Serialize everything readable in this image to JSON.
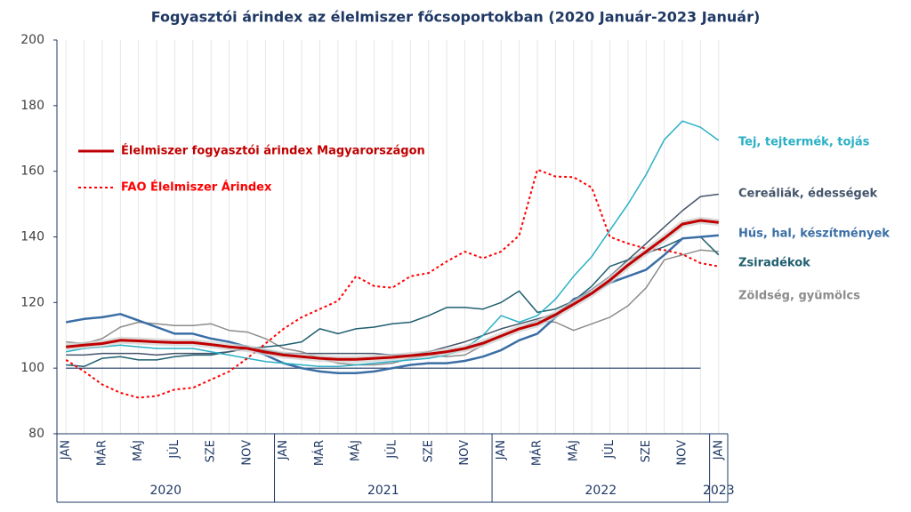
{
  "chart_data": {
    "type": "line",
    "title": "Fogyasztói árindex az élelmiszer főcsoportokban (2020 Január-2023 Január)",
    "categories": [
      "JAN",
      null,
      "MÁR",
      null,
      "MÁJ",
      null,
      "JÚL",
      null,
      "SZE",
      null,
      "NOV",
      null,
      "JAN",
      null,
      "MÁR",
      null,
      "MÁJ",
      null,
      "JÚL",
      null,
      "SZE",
      null,
      "NOV",
      null,
      "JAN",
      null,
      "MÁR",
      null,
      "MÁJ",
      null,
      "JÚL",
      null,
      "SZE",
      null,
      "NOV",
      null,
      "JAN"
    ],
    "years": [
      "2020",
      "2021",
      "2022",
      "2023"
    ],
    "ylim": [
      80,
      200
    ],
    "yticks": [
      80,
      100,
      120,
      140,
      160,
      180,
      200
    ],
    "baseline": 100,
    "legend": "upper left",
    "series": [
      {
        "name": "Élelmiszer fogyasztói árindex Magyarországon",
        "color": "#c00000",
        "width": 3,
        "legend": true,
        "values": [
          106.5,
          107,
          107.5,
          108.5,
          108.3,
          108,
          107.8,
          107.8,
          107.2,
          106.5,
          106,
          104.9,
          104,
          103.5,
          103,
          102.7,
          102.7,
          103,
          103.3,
          103.8,
          104.3,
          105,
          106,
          107.6,
          109.8,
          112,
          113.5,
          116.3,
          119.5,
          122.8,
          126.8,
          131.4,
          135.5,
          139.6,
          143.9,
          145,
          144.4
        ]
      },
      {
        "name": "FAO Élelmiszer Árindex",
        "color": "#ff0000",
        "width": 2,
        "dash": "dotted",
        "legend": true,
        "values": [
          102.5,
          99,
          95,
          92.5,
          91,
          91.5,
          93.5,
          94,
          96.5,
          99,
          103,
          107.5,
          112,
          115.5,
          118,
          120.5,
          128,
          125,
          124.5,
          128,
          129,
          132.5,
          135.5,
          133.5,
          135.5,
          140.5,
          160.5,
          158.4,
          158.2,
          155,
          140,
          138,
          136.4,
          136,
          134.7,
          132,
          131
        ]
      },
      {
        "name": "Tej, tejtermék, tojás",
        "color": "#2ab0c5",
        "width": 1.5,
        "values": [
          105,
          106,
          106.5,
          107,
          106.5,
          106,
          106,
          106,
          105,
          104,
          103,
          102,
          101.5,
          101,
          100.5,
          100.5,
          101,
          101.5,
          102,
          102.5,
          103,
          104,
          106,
          110,
          116,
          114,
          116,
          121,
          128,
          134,
          142,
          150,
          159,
          169.6,
          175.3,
          173.4,
          169.4
        ]
      },
      {
        "name": "Cereáliák, édességek",
        "color": "#44546a",
        "width": 1.5,
        "values": [
          104,
          104,
          104.5,
          104.5,
          104.5,
          104,
          104.5,
          104.5,
          104.5,
          105,
          106,
          105.5,
          104.5,
          104.5,
          104.5,
          104.5,
          104.5,
          104.5,
          104,
          104,
          105,
          106.5,
          108,
          110,
          112,
          113.5,
          115,
          116.5,
          120.5,
          124,
          128,
          133,
          138,
          143,
          148,
          152.3,
          153
        ]
      },
      {
        "name": "Hús, hal, készítmények",
        "color": "#3a6ea5",
        "width": 2.5,
        "values": [
          114,
          115,
          115.5,
          116.5,
          114.5,
          112.5,
          110.5,
          110.5,
          109,
          108,
          106.5,
          104,
          101.5,
          100,
          99,
          98.5,
          98.5,
          99,
          100,
          101,
          101.5,
          101.5,
          102.2,
          103.5,
          105.5,
          108.5,
          110.5,
          115.5,
          121,
          123,
          126,
          128,
          130,
          134.5,
          139.5,
          140,
          140.5
        ]
      },
      {
        "name": "Zsiradékok",
        "color": "#1f5f6f",
        "width": 1.5,
        "values": [
          101,
          100.5,
          103,
          103.5,
          102.5,
          102.5,
          103.5,
          104,
          104,
          105,
          106,
          106.5,
          107,
          108,
          112,
          110.5,
          112,
          112.5,
          113.5,
          114,
          116,
          118.5,
          118.5,
          118,
          120,
          123.5,
          117,
          118,
          120.5,
          125,
          131,
          133,
          135,
          137,
          139.5,
          140,
          134.5
        ]
      },
      {
        "name": "Zöldség, gyümölcs",
        "color": "#8c8c8c",
        "width": 1.5,
        "values": [
          108,
          107.5,
          109,
          112.5,
          114,
          113.5,
          113,
          113,
          113.5,
          111.5,
          111,
          109,
          106,
          105,
          103,
          101.5,
          101,
          101,
          101.5,
          103,
          104,
          103.5,
          104,
          107,
          110,
          112,
          114.5,
          114,
          111.5,
          113.5,
          115.5,
          119,
          124.5,
          133,
          134.5,
          136,
          135.5
        ]
      }
    ]
  }
}
